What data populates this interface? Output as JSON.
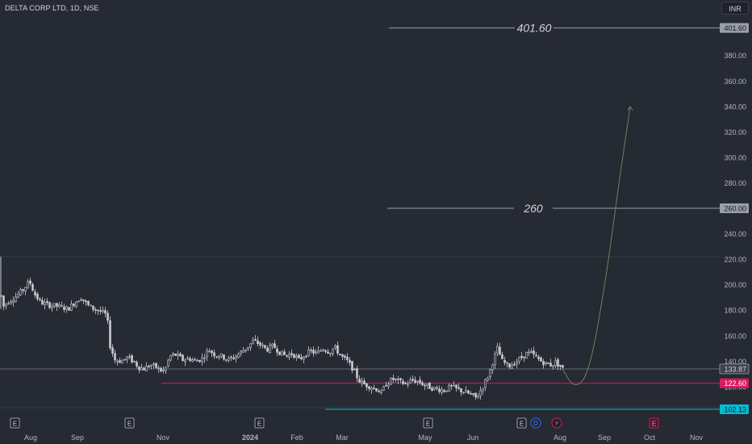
{
  "header": {
    "symbol": "DELTA CORP LTD, 1D, NSE",
    "currency": "INR"
  },
  "chart_data": {
    "type": "candlestick",
    "ylim": [
      98,
      418
    ],
    "y_ticks": [
      120,
      140,
      160,
      180,
      200,
      220,
      240,
      260,
      280,
      300,
      320,
      340,
      360,
      380
    ],
    "x_ticks": [
      {
        "label": "Aug",
        "bold": false
      },
      {
        "label": "Sep",
        "bold": false
      },
      {
        "label": "Nov",
        "bold": false
      },
      {
        "label": "2024",
        "bold": true
      },
      {
        "label": "Feb",
        "bold": false
      },
      {
        "label": "Mar",
        "bold": false
      },
      {
        "label": "May",
        "bold": false
      },
      {
        "label": "Jun",
        "bold": false
      },
      {
        "label": "Aug",
        "bold": false
      },
      {
        "label": "Sep",
        "bold": false
      },
      {
        "label": "Oct",
        "bold": false
      },
      {
        "label": "Nov",
        "bold": false
      }
    ],
    "price_path": [
      [
        0,
        194
      ],
      [
        4,
        183
      ],
      [
        10,
        187
      ],
      [
        18,
        190
      ],
      [
        28,
        196
      ],
      [
        36,
        203
      ],
      [
        42,
        193
      ],
      [
        50,
        186
      ],
      [
        60,
        184
      ],
      [
        72,
        183
      ],
      [
        84,
        181
      ],
      [
        92,
        186
      ],
      [
        100,
        190
      ],
      [
        108,
        184
      ],
      [
        116,
        181
      ],
      [
        124,
        179
      ],
      [
        132,
        176
      ],
      [
        136,
        152
      ],
      [
        142,
        141
      ],
      [
        150,
        140
      ],
      [
        158,
        143
      ],
      [
        166,
        139
      ],
      [
        172,
        135
      ],
      [
        178,
        134
      ],
      [
        186,
        137
      ],
      [
        194,
        135
      ],
      [
        200,
        132
      ],
      [
        204,
        133
      ],
      [
        210,
        144
      ],
      [
        218,
        145
      ],
      [
        226,
        141
      ],
      [
        234,
        142
      ],
      [
        242,
        140
      ],
      [
        250,
        142
      ],
      [
        258,
        149
      ],
      [
        266,
        145
      ],
      [
        274,
        144
      ],
      [
        282,
        141
      ],
      [
        290,
        143
      ],
      [
        298,
        147
      ],
      [
        306,
        151
      ],
      [
        314,
        156
      ],
      [
        322,
        153
      ],
      [
        330,
        149
      ],
      [
        338,
        152
      ],
      [
        346,
        147
      ],
      [
        354,
        144
      ],
      [
        362,
        146
      ],
      [
        370,
        141
      ],
      [
        378,
        145
      ],
      [
        384,
        148
      ],
      [
        392,
        146
      ],
      [
        400,
        150
      ],
      [
        408,
        147
      ],
      [
        414,
        151
      ],
      [
        422,
        144
      ],
      [
        430,
        140
      ],
      [
        438,
        133
      ],
      [
        444,
        125
      ],
      [
        450,
        122
      ],
      [
        458,
        120
      ],
      [
        466,
        118
      ],
      [
        472,
        115
      ],
      [
        478,
        122
      ],
      [
        486,
        126
      ],
      [
        494,
        124
      ],
      [
        502,
        122
      ],
      [
        510,
        125
      ],
      [
        518,
        124
      ],
      [
        526,
        121
      ],
      [
        534,
        119
      ],
      [
        542,
        118
      ],
      [
        550,
        117
      ],
      [
        558,
        120
      ],
      [
        566,
        118
      ],
      [
        574,
        116
      ],
      [
        582,
        114
      ],
      [
        590,
        111
      ],
      [
        596,
        118
      ],
      [
        602,
        125
      ],
      [
        606,
        131
      ],
      [
        610,
        139
      ],
      [
        616,
        150
      ],
      [
        622,
        140
      ],
      [
        630,
        136
      ],
      [
        638,
        139
      ],
      [
        646,
        143
      ],
      [
        652,
        146
      ],
      [
        658,
        146
      ],
      [
        664,
        143
      ],
      [
        670,
        140
      ],
      [
        676,
        138
      ],
      [
        682,
        137
      ],
      [
        688,
        139
      ],
      [
        694,
        136
      ],
      [
        697,
        134
      ]
    ],
    "price_lines": [
      {
        "value": 401.6,
        "label": "401.60",
        "text": "401.60",
        "color": "#9a9ea7",
        "from": 482
      },
      {
        "value": 260,
        "label": "260.00",
        "text": "260",
        "color": "#9a9ea7",
        "from": 480
      },
      {
        "value": 133.87,
        "label": "133.87",
        "text": "",
        "color": "#646b78",
        "from": 0
      },
      {
        "value": 122.6,
        "label": "122.60",
        "text": "",
        "color": "#d81b60",
        "from": 200
      },
      {
        "value": 102.13,
        "label": "102.13",
        "text": "",
        "color": "#00bcd4",
        "from": 403
      }
    ],
    "projection": {
      "color": "#5d8a5a",
      "points": [
        [
          697,
          134
        ],
        [
          712,
          118
        ],
        [
          730,
          130
        ],
        [
          750,
          200
        ],
        [
          766,
          275
        ],
        [
          781,
          340
        ]
      ]
    },
    "event_markers": [
      {
        "x": 18,
        "label": "E",
        "kind": "earnings"
      },
      {
        "x": 160,
        "label": "E",
        "kind": "earnings"
      },
      {
        "x": 321,
        "label": "E",
        "kind": "earnings"
      },
      {
        "x": 530,
        "label": "E",
        "kind": "earnings"
      },
      {
        "x": 646,
        "label": "E",
        "kind": "earnings"
      },
      {
        "x": 664,
        "label": "D",
        "kind": "dividend"
      },
      {
        "x": 690,
        "label": "⚡",
        "kind": "split"
      },
      {
        "x": 810,
        "label": "E",
        "kind": "earnings-upcoming"
      }
    ]
  },
  "colors": {
    "background": "#262a33",
    "text": "#d1d4dc",
    "axis_text": "#b2b5be",
    "candle": "#c8cbd3",
    "projection": "#5d8a5a",
    "support_pink": "#d81b60",
    "support_cyan": "#00bcd4"
  }
}
